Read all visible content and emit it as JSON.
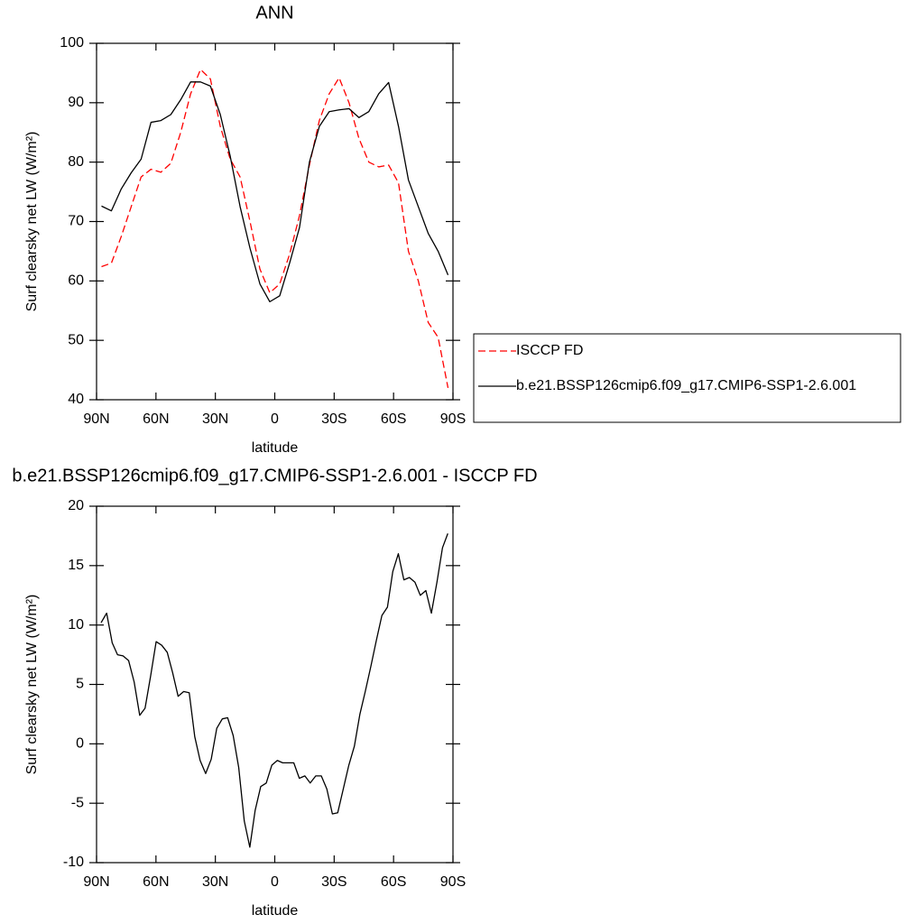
{
  "chart_data": [
    {
      "type": "line",
      "title": "ANN",
      "xlabel": "latitude",
      "ylabel": "Surf clearsky net LW (W/m²)",
      "x": [
        87.5,
        82.5,
        77.5,
        72.5,
        67.5,
        62.5,
        57.5,
        52.5,
        47.5,
        42.5,
        37.5,
        32.5,
        27.5,
        22.5,
        17.5,
        12.5,
        7.5,
        2.5,
        -2.5,
        -7.5,
        -12.5,
        -17.5,
        -22.5,
        -27.5,
        -32.5,
        -37.5,
        -42.5,
        -47.5,
        -52.5,
        -57.5,
        -62.5,
        -67.5,
        -72.5,
        -77.5,
        -82.5,
        -87.5
      ],
      "series": [
        {
          "name": "ISCCP FD",
          "color": "#ff0000",
          "line_style": "dashed",
          "values": [
            62.4,
            63,
            67.5,
            72.5,
            77.5,
            78.8,
            78.3,
            79.8,
            85,
            91.5,
            95.6,
            94,
            86,
            80.5,
            77.5,
            70,
            62,
            58,
            59.5,
            64.5,
            71,
            79.5,
            87,
            91.5,
            94.2,
            90,
            84,
            80,
            79.2,
            79.5,
            76.5,
            65,
            60,
            53,
            50.5,
            42
          ]
        },
        {
          "name": "b.e21.BSSP126cmip6.f09_g17.CMIP6-SSP1-2.6.001",
          "color": "#000000",
          "line_style": "solid",
          "values": [
            72.6,
            71.8,
            75.5,
            78.2,
            80.5,
            86.7,
            87,
            88,
            90.5,
            93.5,
            93.5,
            92.8,
            88,
            81,
            72.5,
            65.5,
            59.5,
            56.5,
            57.5,
            63,
            69,
            80,
            86,
            88.5,
            88.8,
            89,
            87.5,
            88.5,
            91.5,
            93.4,
            86,
            77,
            72.5,
            68,
            65,
            61
          ]
        }
      ],
      "xlim": [
        90,
        -90
      ],
      "xticks": [
        {
          "value": 90,
          "label": "90N"
        },
        {
          "value": 60,
          "label": "60N"
        },
        {
          "value": 30,
          "label": "30N"
        },
        0,
        {
          "value": -30,
          "label": "30S"
        },
        {
          "value": -60,
          "label": "60S"
        },
        {
          "value": -90,
          "label": "90S"
        }
      ],
      "ylim": [
        40,
        100
      ],
      "yticks": [
        40,
        50,
        60,
        70,
        80,
        90,
        100
      ],
      "grid": false,
      "legend": "right"
    },
    {
      "type": "line",
      "title": "b.e21.BSSP126cmip6.f09_g17.CMIP6-SSP1-2.6.001 - ISCCP FD",
      "xlabel": "latitude",
      "ylabel": "Surf clearsky net LW (W/m²)",
      "x": [
        87.7,
        84.9,
        82.1,
        79.4,
        76.6,
        73.8,
        71.0,
        68.2,
        65.5,
        62.7,
        59.9,
        57.1,
        54.3,
        51.6,
        48.8,
        46.0,
        43.2,
        40.4,
        37.7,
        34.9,
        32.1,
        29.3,
        26.5,
        23.8,
        21.0,
        18.2,
        15.4,
        12.6,
        9.9,
        7.1,
        4.3,
        1.5,
        -1.3,
        -4.0,
        -6.8,
        -9.6,
        -12.4,
        -15.2,
        -17.9,
        -20.7,
        -23.5,
        -26.3,
        -29.1,
        -31.8,
        -34.6,
        -37.4,
        -40.2,
        -43.0,
        -45.7,
        -48.5,
        -51.3,
        -54.1,
        -56.9,
        -59.6,
        -62.4,
        -65.2,
        -68.0,
        -70.8,
        -73.5,
        -76.3,
        -79.1,
        -81.9,
        -84.7,
        -87.4
      ],
      "series": [
        {
          "color": "#000000",
          "line_style": "solid",
          "values": [
            10.2,
            11,
            8.5,
            7.5,
            7.4,
            7,
            5.2,
            2.4,
            3,
            5.7,
            8.6,
            8.3,
            7.7,
            6,
            4,
            4.4,
            4.3,
            0.6,
            -1.4,
            -2.5,
            -1.3,
            1.3,
            2.1,
            2.2,
            0.7,
            -2,
            -6.5,
            -8.7,
            -5.6,
            -3.6,
            -3.3,
            -1.8,
            -1.4,
            -1.6,
            -1.6,
            -1.6,
            -2.9,
            -2.7,
            -3.3,
            -2.7,
            -2.7,
            -3.8,
            -5.9,
            -5.8,
            -3.8,
            -1.8,
            -0.2,
            2.5,
            4.4,
            6.5,
            8.7,
            10.8,
            11.5,
            14.5,
            16,
            13.8,
            14,
            13.6,
            12.5,
            12.9,
            11,
            13.6,
            16.5,
            17.7
          ]
        }
      ],
      "xlim": [
        90,
        -90
      ],
      "xticks": [
        {
          "value": 90,
          "label": "90N"
        },
        {
          "value": 60,
          "label": "60N"
        },
        {
          "value": 30,
          "label": "30N"
        },
        0,
        {
          "value": -30,
          "label": "30S"
        },
        {
          "value": -60,
          "label": "60S"
        },
        {
          "value": -90,
          "label": "90S"
        }
      ],
      "ylim": [
        -10,
        20
      ],
      "yticks": [
        -10,
        -5,
        0,
        5,
        10,
        15,
        20
      ],
      "grid": false
    }
  ]
}
